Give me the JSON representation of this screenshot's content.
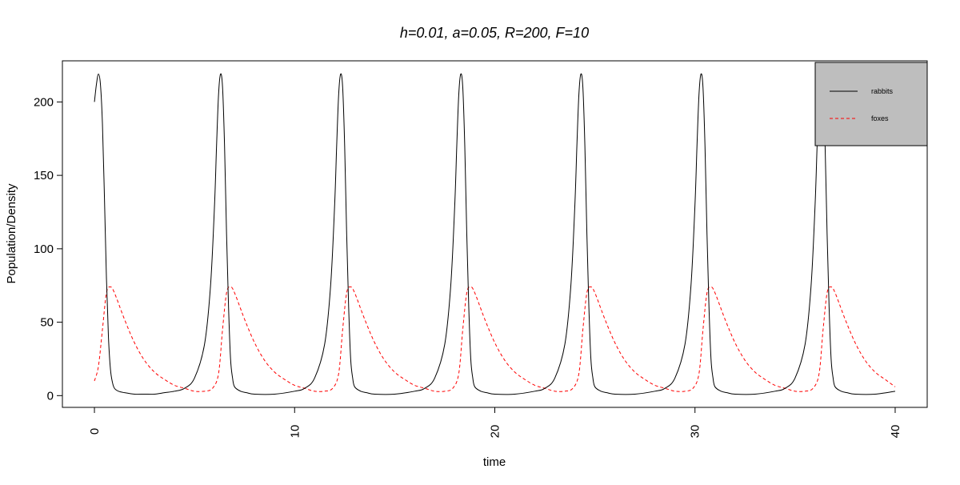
{
  "chart_data": {
    "type": "line",
    "title": "h=0.01, a=0.05, R=200, F=10",
    "xlabel": "time",
    "ylabel": "Population/Density",
    "xlim": [
      -1.6,
      41.6
    ],
    "ylim": [
      -8,
      228
    ],
    "x_ticks": [
      0,
      10,
      20,
      30,
      40
    ],
    "x_tick_labels": [
      "0",
      "10",
      "20",
      "30",
      "40"
    ],
    "y_ticks": [
      0,
      50,
      100,
      150,
      200
    ],
    "y_tick_labels": [
      "0",
      "50",
      "100",
      "150",
      "200"
    ],
    "grid": false,
    "legend": {
      "position": "top-right",
      "background": "#bebebe"
    },
    "series": [
      {
        "name": "rabbits",
        "color": "#000000",
        "dash": "solid",
        "points": [
          [
            0,
            200
          ],
          [
            0.1,
            212
          ],
          [
            0.2,
            219
          ],
          [
            0.3,
            212
          ],
          [
            0.4,
            185
          ],
          [
            0.5,
            135
          ],
          [
            0.6,
            80
          ],
          [
            0.7,
            40
          ],
          [
            0.8,
            18
          ],
          [
            0.9,
            9
          ],
          [
            1.0,
            5
          ],
          [
            1.2,
            3
          ],
          [
            1.5,
            2
          ],
          [
            2.0,
            1
          ],
          [
            2.5,
            1
          ],
          [
            3.0,
            1
          ],
          [
            3.5,
            2
          ],
          [
            4.0,
            3
          ],
          [
            4.5,
            5
          ],
          [
            5.0,
            12
          ],
          [
            5.5,
            35
          ],
          [
            5.8,
            75
          ],
          [
            6.0,
            130
          ],
          [
            6.1,
            170
          ],
          [
            6.2,
            205
          ],
          [
            6.3,
            219
          ],
          [
            6.4,
            210
          ],
          [
            6.5,
            170
          ],
          [
            6.6,
            110
          ],
          [
            6.7,
            60
          ],
          [
            6.8,
            25
          ],
          [
            6.9,
            12
          ],
          [
            7.0,
            6
          ],
          [
            7.3,
            3
          ],
          [
            7.6,
            2
          ],
          [
            8.0,
            1
          ],
          [
            9.0,
            1
          ],
          [
            10.0,
            3
          ],
          [
            10.5,
            5
          ],
          [
            11.0,
            12
          ],
          [
            11.5,
            35
          ],
          [
            11.8,
            75
          ],
          [
            12.0,
            130
          ],
          [
            12.1,
            170
          ],
          [
            12.2,
            205
          ],
          [
            12.3,
            219
          ],
          [
            12.4,
            210
          ],
          [
            12.5,
            170
          ],
          [
            12.6,
            110
          ],
          [
            12.7,
            60
          ],
          [
            12.8,
            25
          ],
          [
            12.9,
            12
          ],
          [
            13.0,
            6
          ],
          [
            13.3,
            3
          ],
          [
            13.6,
            2
          ],
          [
            14.0,
            1
          ],
          [
            15.0,
            1
          ],
          [
            16.0,
            3
          ],
          [
            16.5,
            5
          ],
          [
            17.0,
            12
          ],
          [
            17.5,
            35
          ],
          [
            17.8,
            75
          ],
          [
            18.0,
            130
          ],
          [
            18.1,
            170
          ],
          [
            18.2,
            205
          ],
          [
            18.3,
            219
          ],
          [
            18.4,
            210
          ],
          [
            18.5,
            170
          ],
          [
            18.6,
            110
          ],
          [
            18.7,
            60
          ],
          [
            18.8,
            25
          ],
          [
            18.9,
            12
          ],
          [
            19.0,
            6
          ],
          [
            19.3,
            3
          ],
          [
            19.6,
            2
          ],
          [
            20.0,
            1
          ],
          [
            21.0,
            1
          ],
          [
            22.0,
            3
          ],
          [
            22.5,
            5
          ],
          [
            23.0,
            12
          ],
          [
            23.5,
            35
          ],
          [
            23.8,
            75
          ],
          [
            24.0,
            130
          ],
          [
            24.1,
            170
          ],
          [
            24.2,
            205
          ],
          [
            24.3,
            219
          ],
          [
            24.4,
            210
          ],
          [
            24.5,
            170
          ],
          [
            24.6,
            110
          ],
          [
            24.7,
            60
          ],
          [
            24.8,
            25
          ],
          [
            24.9,
            12
          ],
          [
            25.0,
            6
          ],
          [
            25.3,
            3
          ],
          [
            25.6,
            2
          ],
          [
            26.0,
            1
          ],
          [
            27.0,
            1
          ],
          [
            28.0,
            3
          ],
          [
            28.5,
            5
          ],
          [
            29.0,
            12
          ],
          [
            29.5,
            35
          ],
          [
            29.8,
            75
          ],
          [
            30.0,
            130
          ],
          [
            30.1,
            170
          ],
          [
            30.2,
            205
          ],
          [
            30.3,
            219
          ],
          [
            30.4,
            210
          ],
          [
            30.5,
            170
          ],
          [
            30.6,
            110
          ],
          [
            30.7,
            60
          ],
          [
            30.8,
            25
          ],
          [
            30.9,
            12
          ],
          [
            31.0,
            6
          ],
          [
            31.3,
            3
          ],
          [
            31.6,
            2
          ],
          [
            32.0,
            1
          ],
          [
            33.0,
            1
          ],
          [
            34.0,
            3
          ],
          [
            34.5,
            5
          ],
          [
            35.0,
            12
          ],
          [
            35.5,
            35
          ],
          [
            35.8,
            75
          ],
          [
            36.0,
            130
          ],
          [
            36.1,
            170
          ],
          [
            36.2,
            205
          ],
          [
            36.3,
            219
          ],
          [
            36.4,
            210
          ],
          [
            36.5,
            170
          ],
          [
            36.6,
            110
          ],
          [
            36.7,
            60
          ],
          [
            36.8,
            25
          ],
          [
            36.9,
            12
          ],
          [
            37.0,
            6
          ],
          [
            37.3,
            3
          ],
          [
            37.6,
            2
          ],
          [
            38.0,
            1
          ],
          [
            39.0,
            1
          ],
          [
            40.0,
            3
          ]
        ]
      },
      {
        "name": "foxes",
        "color": "#ff0000",
        "dash": "dashed",
        "points": [
          [
            0,
            10
          ],
          [
            0.2,
            20
          ],
          [
            0.4,
            45
          ],
          [
            0.6,
            70
          ],
          [
            0.8,
            74
          ],
          [
            1.0,
            70
          ],
          [
            1.5,
            52
          ],
          [
            2.0,
            36
          ],
          [
            2.5,
            24
          ],
          [
            3.0,
            16
          ],
          [
            3.5,
            11
          ],
          [
            4.0,
            7
          ],
          [
            4.5,
            5
          ],
          [
            5.0,
            3
          ],
          [
            5.5,
            3
          ],
          [
            5.9,
            5
          ],
          [
            6.2,
            15
          ],
          [
            6.4,
            45
          ],
          [
            6.6,
            70
          ],
          [
            6.8,
            74
          ],
          [
            7.0,
            70
          ],
          [
            7.5,
            52
          ],
          [
            8.0,
            36
          ],
          [
            8.5,
            24
          ],
          [
            9.0,
            16
          ],
          [
            9.5,
            11
          ],
          [
            10.0,
            7
          ],
          [
            10.5,
            5
          ],
          [
            11.0,
            3
          ],
          [
            11.5,
            3
          ],
          [
            11.9,
            5
          ],
          [
            12.2,
            15
          ],
          [
            12.4,
            45
          ],
          [
            12.6,
            70
          ],
          [
            12.8,
            74
          ],
          [
            13.0,
            70
          ],
          [
            13.5,
            52
          ],
          [
            14.0,
            36
          ],
          [
            14.5,
            24
          ],
          [
            15.0,
            16
          ],
          [
            15.5,
            11
          ],
          [
            16.0,
            7
          ],
          [
            16.5,
            5
          ],
          [
            17.0,
            3
          ],
          [
            17.5,
            3
          ],
          [
            17.9,
            5
          ],
          [
            18.2,
            15
          ],
          [
            18.4,
            45
          ],
          [
            18.6,
            70
          ],
          [
            18.8,
            74
          ],
          [
            19.0,
            70
          ],
          [
            19.5,
            52
          ],
          [
            20.0,
            36
          ],
          [
            20.5,
            24
          ],
          [
            21.0,
            16
          ],
          [
            21.5,
            11
          ],
          [
            22.0,
            7
          ],
          [
            22.5,
            5
          ],
          [
            23.0,
            3
          ],
          [
            23.5,
            3
          ],
          [
            23.9,
            5
          ],
          [
            24.2,
            15
          ],
          [
            24.4,
            45
          ],
          [
            24.6,
            70
          ],
          [
            24.8,
            74
          ],
          [
            25.0,
            70
          ],
          [
            25.5,
            52
          ],
          [
            26.0,
            36
          ],
          [
            26.5,
            24
          ],
          [
            27.0,
            16
          ],
          [
            27.5,
            11
          ],
          [
            28.0,
            7
          ],
          [
            28.5,
            5
          ],
          [
            29.0,
            3
          ],
          [
            29.5,
            3
          ],
          [
            29.9,
            5
          ],
          [
            30.2,
            15
          ],
          [
            30.4,
            45
          ],
          [
            30.6,
            70
          ],
          [
            30.8,
            74
          ],
          [
            31.0,
            70
          ],
          [
            31.5,
            52
          ],
          [
            32.0,
            36
          ],
          [
            32.5,
            24
          ],
          [
            33.0,
            16
          ],
          [
            33.5,
            11
          ],
          [
            34.0,
            7
          ],
          [
            34.5,
            5
          ],
          [
            35.0,
            3
          ],
          [
            35.5,
            3
          ],
          [
            35.9,
            5
          ],
          [
            36.2,
            15
          ],
          [
            36.4,
            45
          ],
          [
            36.6,
            70
          ],
          [
            36.8,
            74
          ],
          [
            37.0,
            70
          ],
          [
            37.5,
            52
          ],
          [
            38.0,
            36
          ],
          [
            38.5,
            24
          ],
          [
            39.0,
            16
          ],
          [
            39.5,
            11
          ],
          [
            40.0,
            6
          ]
        ]
      }
    ]
  }
}
